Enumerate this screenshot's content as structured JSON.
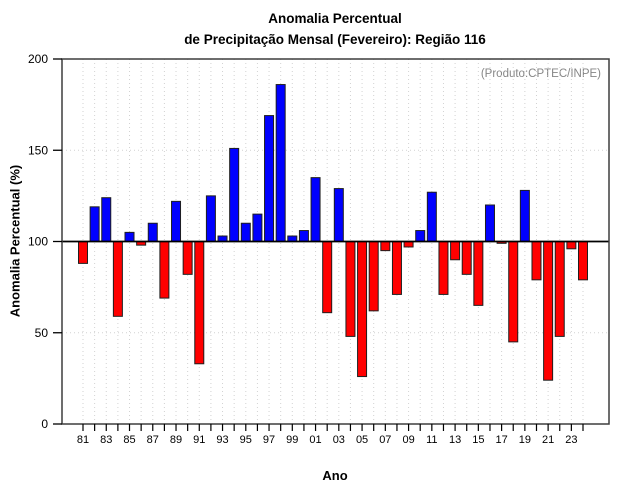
{
  "title": {
    "line1": "Anomalia Percentual",
    "line2": "de Precipitação Mensal (Fevereiro): Região 116"
  },
  "chart_data": {
    "type": "bar",
    "title": "Anomalia Percentual de Precipitação Mensal (Fevereiro): Região 116",
    "xlabel": "Ano",
    "ylabel": "Anomalia Percentual (%)",
    "annotation": "(Produto:CPTEC/INPE)",
    "ylim": [
      0,
      200
    ],
    "yticks": [
      0,
      50,
      100,
      150,
      200
    ],
    "baseline": 100,
    "dotted_hlines": [
      50,
      150
    ],
    "grid": "dotted vertical line at every year, dotted horizontal at 50 and 150, solid black line at 100",
    "legend": "none",
    "bar_colors": {
      "above_baseline": "#0000ff",
      "below_baseline": "#ff0000"
    },
    "x_label_step": 2,
    "categories": [
      "81",
      "82",
      "83",
      "84",
      "85",
      "86",
      "87",
      "88",
      "89",
      "90",
      "91",
      "92",
      "93",
      "94",
      "95",
      "96",
      "97",
      "98",
      "99",
      "00",
      "01",
      "02",
      "03",
      "04",
      "05",
      "06",
      "07",
      "08",
      "09",
      "10",
      "11",
      "12",
      "13",
      "14",
      "15",
      "16",
      "17",
      "18",
      "19",
      "20",
      "21",
      "22",
      "23",
      "24"
    ],
    "values": [
      88,
      119,
      124,
      59,
      105,
      98,
      110,
      69,
      122,
      82,
      33,
      125,
      103,
      151,
      110,
      115,
      169,
      186,
      103,
      106,
      135,
      61,
      129,
      48,
      26,
      62,
      95,
      71,
      97,
      106,
      127,
      71,
      90,
      82,
      65,
      120,
      99,
      45,
      128,
      79,
      24,
      48,
      96,
      79
    ]
  }
}
